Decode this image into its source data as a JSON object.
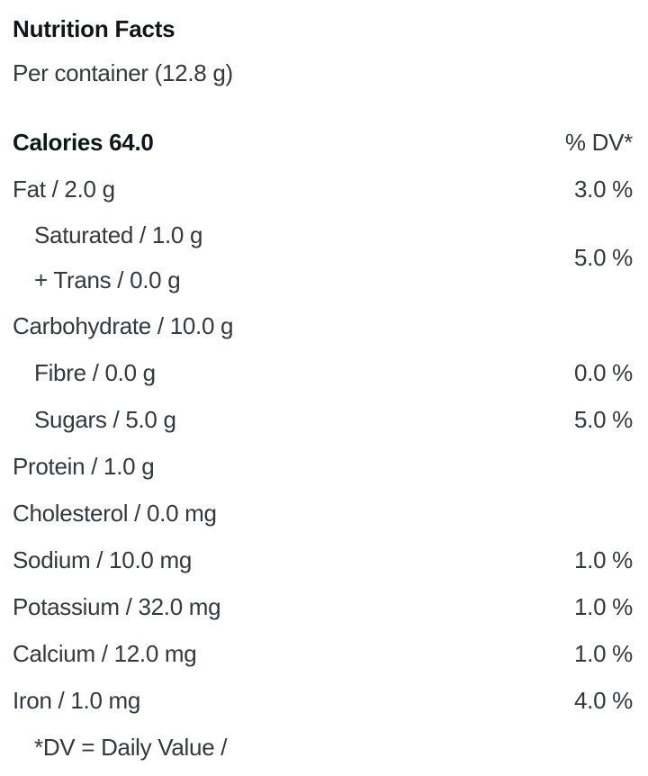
{
  "colors": {
    "background": "#ffffff",
    "text": "#33383e",
    "heading": "#121519"
  },
  "header": {
    "title": "Nutrition Facts",
    "serving": "Per container (12.8 g)"
  },
  "calories": {
    "label": "Calories 64.0",
    "dv_header": "% DV*"
  },
  "rows": [
    {
      "label": "Fat / 2.0 g",
      "dv": "3.0 %"
    },
    {
      "label": "Saturated / 1.0 g",
      "label2": "+ Trans / 0.0 g",
      "dv": "5.0 %"
    },
    {
      "label": "Carbohydrate / 10.0 g",
      "dv": ""
    },
    {
      "label": "Fibre / 0.0 g",
      "dv": "0.0 %"
    },
    {
      "label": "Sugars / 5.0 g",
      "dv": "5.0 %"
    },
    {
      "label": "Protein / 1.0 g",
      "dv": ""
    },
    {
      "label": "Cholesterol / 0.0 mg",
      "dv": ""
    },
    {
      "label": "Sodium / 10.0 mg",
      "dv": "1.0 %"
    },
    {
      "label": "Potassium / 32.0 mg",
      "dv": "1.0 %"
    },
    {
      "label": "Calcium / 12.0 mg",
      "dv": "1.0 %"
    },
    {
      "label": "Iron / 1.0 mg",
      "dv": "4.0 %"
    }
  ],
  "footnote": "*DV = Daily Value /"
}
